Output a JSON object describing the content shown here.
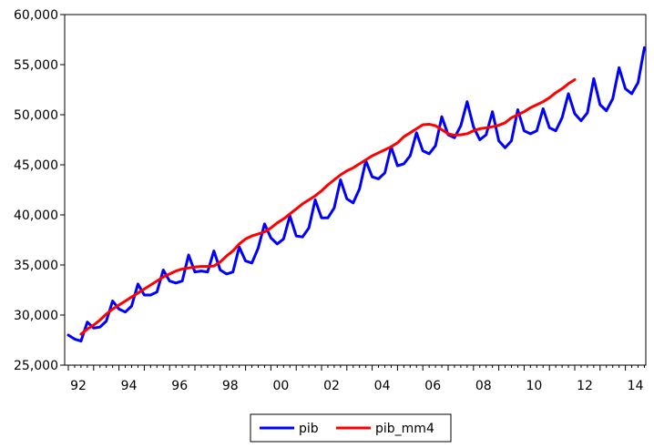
{
  "chart_data": {
    "type": "line",
    "title": "",
    "xlabel": "",
    "ylabel": "",
    "x_start_year": 1992,
    "x_start_quarter": 1,
    "frequency": "quarterly",
    "ylim": [
      25000,
      60000
    ],
    "yticks": [
      25000,
      30000,
      35000,
      40000,
      45000,
      50000,
      55000,
      60000
    ],
    "ytick_labels": [
      "25,000",
      "30,000",
      "35,000",
      "40,000",
      "45,000",
      "50,000",
      "55,000",
      "60,000"
    ],
    "xtick_labels": [
      "92",
      "94",
      "96",
      "98",
      "00",
      "02",
      "04",
      "06",
      "08",
      "10",
      "12",
      "14"
    ],
    "grid": false,
    "legend_position": "bottom-center",
    "series": [
      {
        "name": "pib",
        "color": "#0000ff",
        "values": [
          28000,
          27600,
          27400,
          29300,
          28700,
          28800,
          29400,
          31400,
          30600,
          30300,
          30900,
          33100,
          32000,
          32000,
          32300,
          34500,
          33400,
          33200,
          33400,
          36000,
          34300,
          34400,
          34300,
          36400,
          34500,
          34100,
          34300,
          36800,
          35400,
          35200,
          36700,
          39100,
          37700,
          37100,
          37600,
          39900,
          37900,
          37800,
          38700,
          41500,
          39700,
          39700,
          40700,
          43500,
          41600,
          41200,
          42600,
          45400,
          43800,
          43600,
          44200,
          46800,
          44900,
          45100,
          45900,
          48200,
          46400,
          46100,
          46900,
          49800,
          48000,
          47700,
          48900,
          51300,
          48800,
          47500,
          48000,
          50300,
          47400,
          46700,
          47400,
          50500,
          48400,
          48100,
          48400,
          50600,
          48700,
          48400,
          49700,
          52100,
          50100,
          49400,
          50200,
          53600,
          51000,
          50400,
          51600,
          54700,
          52600,
          52100,
          53200,
          56700
        ]
      },
      {
        "name": "pib_mm4",
        "color": "#ff0000",
        "offset": 2,
        "values": [
          28100,
          28600,
          29000,
          29500,
          30100,
          30600,
          31000,
          31400,
          31800,
          32200,
          32600,
          33000,
          33400,
          33800,
          34100,
          34400,
          34600,
          34700,
          34800,
          34850,
          34850,
          34900,
          35300,
          35900,
          36400,
          37100,
          37600,
          37900,
          38100,
          38300,
          38700,
          39200,
          39600,
          40100,
          40600,
          41100,
          41500,
          41900,
          42400,
          43000,
          43500,
          44000,
          44400,
          44700,
          45100,
          45500,
          45900,
          46200,
          46500,
          46800,
          47200,
          47800,
          48200,
          48600,
          49000,
          49050,
          48900,
          48500,
          48100,
          47950,
          48000,
          48100,
          48400,
          48600,
          48700,
          48800,
          48950,
          49200,
          49700,
          50000,
          50300,
          50700,
          51000,
          51300,
          51700,
          52200,
          52600,
          53100,
          53500
        ]
      }
    ]
  }
}
